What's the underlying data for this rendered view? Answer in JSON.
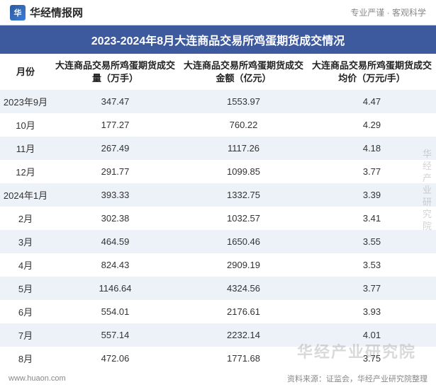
{
  "header": {
    "logo_glyph": "华",
    "logo_text": "华经情报网",
    "tagline": "专业严谨 · 客观科学"
  },
  "title": "2023-2024年8月大连商品交易所鸡蛋期货成交情况",
  "table": {
    "columns": [
      "月份",
      "大连商品交易所鸡蛋期货成交量（万手）",
      "大连商品交易所鸡蛋期货成交金额（亿元）",
      "大连商品交易所鸡蛋期货成交均价（万元/手）"
    ],
    "rows": [
      [
        "2023年9月",
        "347.47",
        "1553.97",
        "4.47"
      ],
      [
        "10月",
        "177.27",
        "760.22",
        "4.29"
      ],
      [
        "11月",
        "267.49",
        "1117.26",
        "4.18"
      ],
      [
        "12月",
        "291.77",
        "1099.85",
        "3.77"
      ],
      [
        "2024年1月",
        "393.33",
        "1332.75",
        "3.39"
      ],
      [
        "2月",
        "302.38",
        "1032.57",
        "3.41"
      ],
      [
        "3月",
        "464.59",
        "1650.46",
        "3.55"
      ],
      [
        "4月",
        "824.43",
        "2909.19",
        "3.53"
      ],
      [
        "5月",
        "1146.64",
        "4324.56",
        "3.77"
      ],
      [
        "6月",
        "554.01",
        "2176.61",
        "3.93"
      ],
      [
        "7月",
        "557.14",
        "2232.14",
        "4.01"
      ],
      [
        "8月",
        "472.06",
        "1771.68",
        "3.75"
      ]
    ],
    "header_bg": "#3e5a9e",
    "row_odd_bg": "#edf1f8",
    "row_even_bg": "#ffffff"
  },
  "footer": {
    "url": "www.huaon.com",
    "source": "资料来源：证监会，华经产业研究院整理"
  },
  "watermark": "华经产业研究院",
  "side_watermark": "华经产业研究院"
}
